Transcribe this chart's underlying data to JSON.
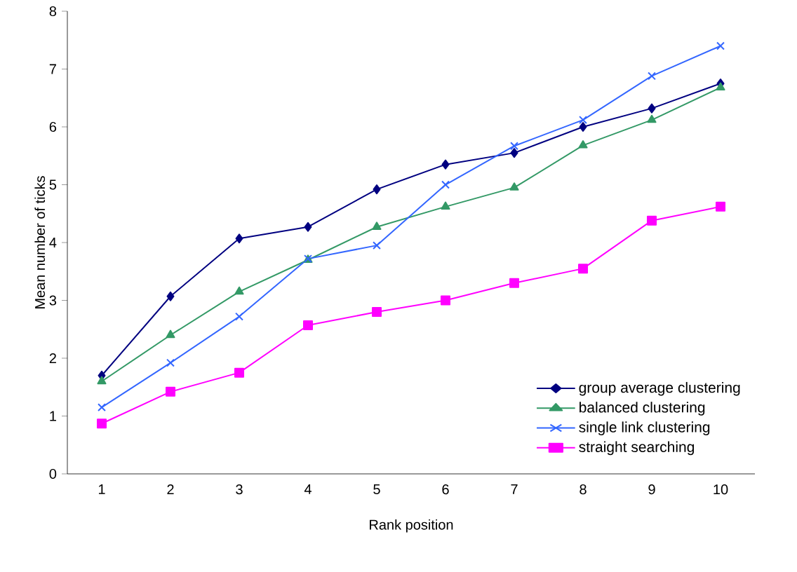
{
  "chart_data": {
    "type": "line",
    "xlabel": "Rank position",
    "ylabel": "Mean number of ticks",
    "categories": [
      "1",
      "2",
      "3",
      "4",
      "5",
      "6",
      "7",
      "8",
      "9",
      "10"
    ],
    "ylim": [
      0,
      8
    ],
    "yticks": [
      0,
      1,
      2,
      3,
      4,
      5,
      6,
      7,
      8
    ],
    "legend": "bottom right",
    "grid": false,
    "line_style": "solid",
    "series": [
      {
        "name": "group average clustering",
        "color": "#000080",
        "marker": "diamond",
        "values": [
          1.7,
          3.07,
          4.07,
          4.27,
          4.92,
          5.35,
          5.55,
          6.0,
          6.32,
          6.75
        ]
      },
      {
        "name": "balanced clustering",
        "color": "#339966",
        "marker": "triangle",
        "values": [
          1.6,
          2.4,
          3.15,
          3.7,
          4.27,
          4.62,
          4.95,
          5.68,
          6.12,
          6.68
        ]
      },
      {
        "name": "single link clustering",
        "color": "#3366ff",
        "marker": "cross",
        "values": [
          1.15,
          1.92,
          2.72,
          3.72,
          3.95,
          5.0,
          5.67,
          6.12,
          6.88,
          7.4
        ]
      },
      {
        "name": "straight searching",
        "color": "#ff00ff",
        "marker": "square",
        "values": [
          0.87,
          1.42,
          1.75,
          2.57,
          2.8,
          3.0,
          3.3,
          3.55,
          4.38,
          4.62
        ]
      }
    ]
  }
}
